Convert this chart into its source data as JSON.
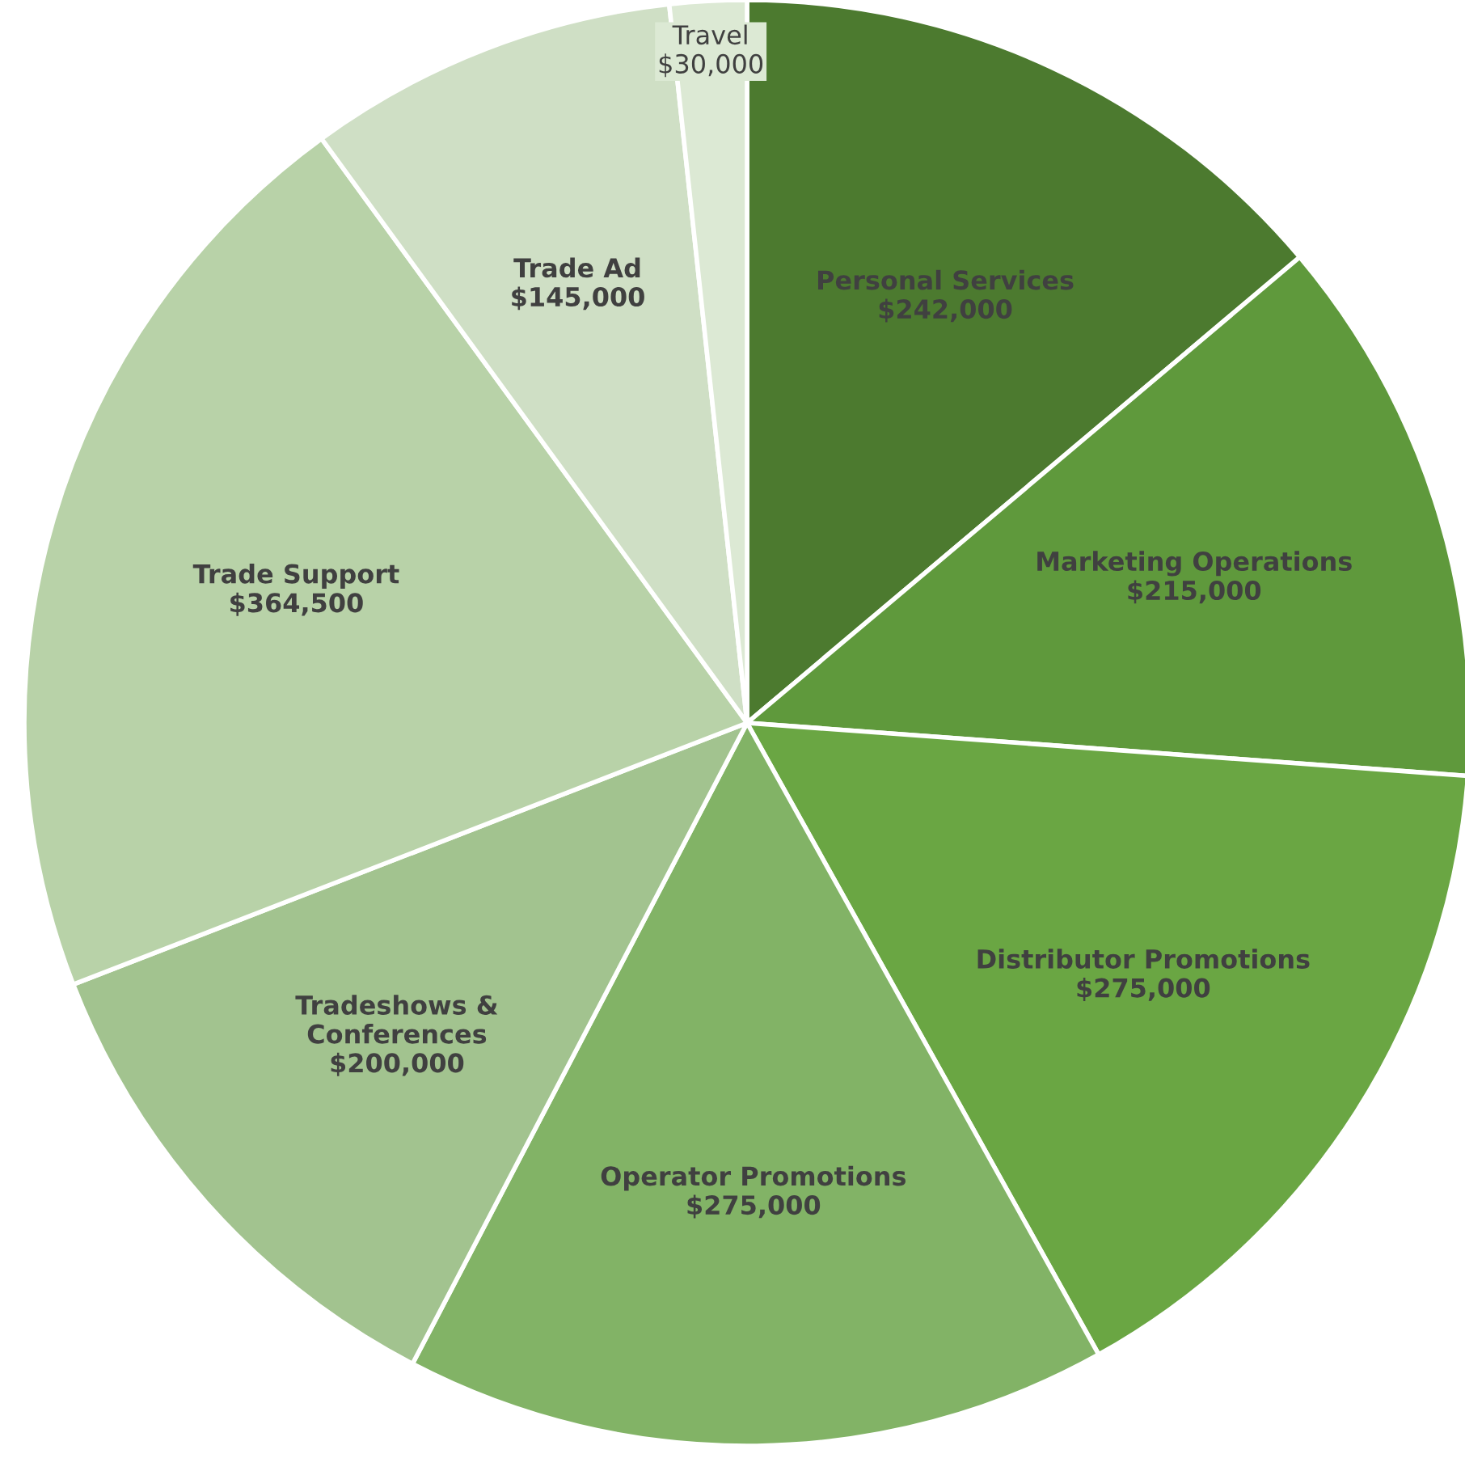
{
  "chart_data": {
    "type": "pie",
    "categories": [
      "Personal Services",
      "Marketing Operations",
      "Distributor Promotions",
      "Operator Promotions",
      "Tradeshows &\nConferences",
      "Trade Support",
      "Trade Ad",
      "Travel"
    ],
    "values": [
      242000,
      215000,
      275000,
      275000,
      200000,
      364500,
      145000,
      30000
    ],
    "value_labels": [
      "$242,000",
      "$215,000",
      "$275,000",
      "$275,000",
      "$200,000",
      "$364,500",
      "$145,000",
      "$30,000"
    ],
    "colors": [
      "#4c7a2f",
      "#5f993c",
      "#6aa643",
      "#82b366",
      "#a2c38f",
      "#b8d2a8",
      "#cfdfc5",
      "#dce9d4"
    ],
    "legend": false
  }
}
